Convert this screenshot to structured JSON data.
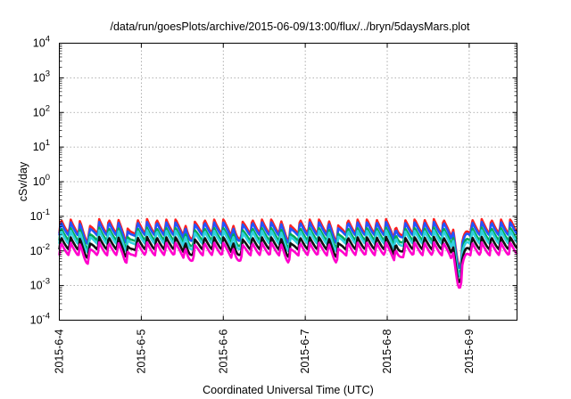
{
  "chart_data": {
    "type": "line",
    "title": "/data/run/goesPlots/archive/2015-06-09/13:00/flux/../bryn/5daysMars.plot",
    "xlabel": "Coordinated Universal Time (UTC)",
    "ylabel": "cSv/day",
    "y_scale": "log",
    "ylim": [
      0.0001,
      10000
    ],
    "xlim": [
      "2015-06-04T00:00",
      "2015-06-09T14:00"
    ],
    "grid": true,
    "y_ticks": [
      {
        "base": "10",
        "exp": "-4"
      },
      {
        "base": "10",
        "exp": "-3"
      },
      {
        "base": "10",
        "exp": "-2"
      },
      {
        "base": "10",
        "exp": "-1"
      },
      {
        "base": "10",
        "exp": "0"
      },
      {
        "base": "10",
        "exp": "1"
      },
      {
        "base": "10",
        "exp": "2"
      },
      {
        "base": "10",
        "exp": "3"
      },
      {
        "base": "10",
        "exp": "4"
      }
    ],
    "x_ticks": [
      "2015-6-4",
      "2015-6-5",
      "2015-6-6",
      "2015-6-7",
      "2015-6-8",
      "2015-6-9"
    ],
    "pattern": {
      "period_hours": 2.8,
      "rise_fraction": 0.15
    },
    "series": [
      {
        "color": "#ff2020",
        "peak": 0.085,
        "trough": 0.032
      },
      {
        "color": "#2255ff",
        "peak": 0.07,
        "trough": 0.028
      },
      {
        "color": "#00aa55",
        "peak": 0.048,
        "trough": 0.02
      },
      {
        "color": "#30d0e0",
        "peak": 0.04,
        "trough": 0.016
      },
      {
        "color": "#111111",
        "peak": 0.026,
        "trough": 0.011
      },
      {
        "color": "#ff00cc",
        "peak": 0.018,
        "trough": 0.0075
      }
    ],
    "dips": [
      {
        "at": "2015-06-04T08:00",
        "factor": 0.55
      },
      {
        "at": "2015-06-04T20:00",
        "factor": 0.55
      },
      {
        "at": "2015-06-05T14:00",
        "factor": 0.55
      },
      {
        "at": "2015-06-06T04:00",
        "factor": 0.55
      },
      {
        "at": "2015-06-06T19:00",
        "factor": 0.6
      },
      {
        "at": "2015-06-07T09:00",
        "factor": 0.6
      },
      {
        "at": "2015-06-08T03:00",
        "factor": 0.6
      },
      {
        "at": "2015-06-08T21:00",
        "factor": 0.1
      }
    ]
  }
}
